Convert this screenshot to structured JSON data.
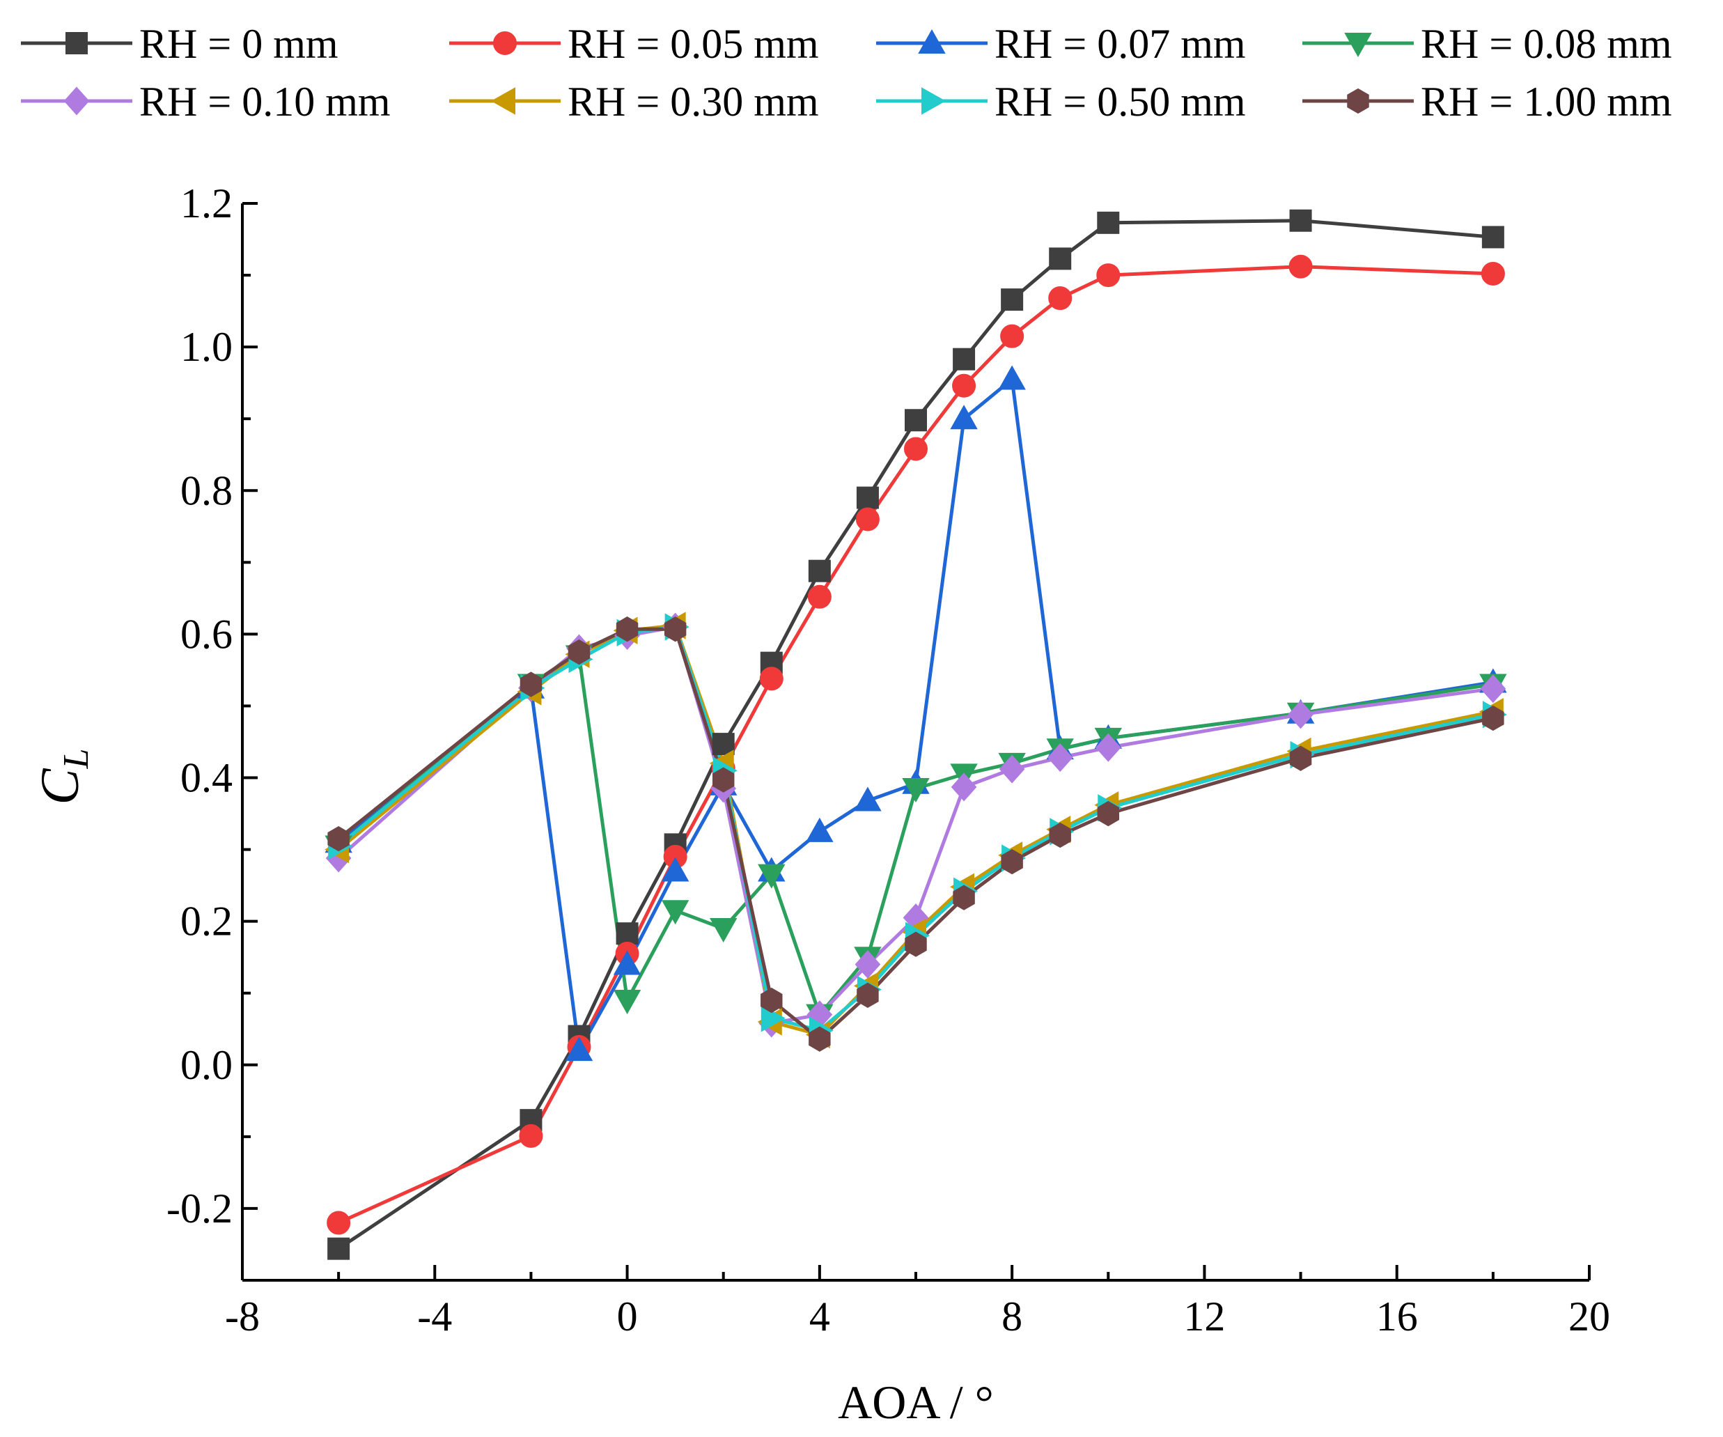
{
  "chart_data": {
    "type": "line",
    "xlabel": "AOA / °",
    "ylabel_main": "C",
    "ylabel_sub": "L",
    "xlim": [
      -8,
      20
    ],
    "ylim": [
      -0.3,
      1.2
    ],
    "xticks": [
      -8,
      -4,
      0,
      4,
      8,
      12,
      16,
      20
    ],
    "xtick_labels": [
      "-8",
      "-4",
      "0",
      "4",
      "8",
      "12",
      "16",
      "20"
    ],
    "yticks": [
      -0.2,
      0.0,
      0.2,
      0.4,
      0.6,
      0.8,
      1.0,
      1.2
    ],
    "ytick_labels": [
      "-0.2",
      "0.0",
      "0.2",
      "0.4",
      "0.6",
      "0.8",
      "1.0",
      "1.2"
    ],
    "grid": false,
    "legend_position": "top",
    "x": [
      -6,
      -2,
      -1,
      0,
      1,
      2,
      3,
      4,
      5,
      6,
      7,
      8,
      9,
      10,
      14,
      18
    ],
    "series": [
      {
        "name": "RH = 0 mm",
        "color": "#3f3f3f",
        "marker": "square",
        "values": [
          -0.256,
          -0.077,
          0.04,
          0.183,
          0.307,
          0.447,
          0.56,
          0.688,
          0.79,
          0.898,
          0.983,
          1.066,
          1.123,
          1.173,
          1.176,
          1.153
        ]
      },
      {
        "name": "RH = 0.05 mm",
        "color": "#f03a3a",
        "marker": "circle",
        "values": [
          -0.22,
          -0.099,
          0.025,
          0.155,
          0.29,
          0.413,
          0.538,
          0.652,
          0.76,
          0.858,
          0.946,
          1.015,
          1.068,
          1.1,
          1.112,
          1.102
        ]
      },
      {
        "name": "RH = 0.07 mm",
        "color": "#1f66d6",
        "marker": "triangle-up",
        "values": [
          0.31,
          0.525,
          0.02,
          0.14,
          0.27,
          0.39,
          0.27,
          0.325,
          0.368,
          0.392,
          0.9,
          0.955,
          0.44,
          0.455,
          0.49,
          0.533
        ]
      },
      {
        "name": "RH = 0.08 mm",
        "color": "#2aa05c",
        "marker": "triangle-down",
        "values": [
          0.305,
          0.53,
          0.57,
          0.09,
          0.215,
          0.19,
          0.265,
          0.07,
          0.15,
          0.385,
          0.405,
          0.42,
          0.44,
          0.455,
          0.49,
          0.53
        ]
      },
      {
        "name": "RH = 0.10 mm",
        "color": "#b07be0",
        "marker": "diamond",
        "values": [
          0.288,
          0.525,
          0.58,
          0.598,
          0.61,
          0.385,
          0.058,
          0.07,
          0.14,
          0.205,
          0.387,
          0.412,
          0.428,
          0.442,
          0.488,
          0.524
        ]
      },
      {
        "name": "RH = 0.30 mm",
        "color": "#c99a00",
        "marker": "triangle-left",
        "values": [
          0.3,
          0.52,
          0.572,
          0.605,
          0.612,
          0.42,
          0.06,
          0.042,
          0.11,
          0.185,
          0.248,
          0.292,
          0.328,
          0.362,
          0.437,
          0.492
        ]
      },
      {
        "name": "RH = 0.50 mm",
        "color": "#22cccc",
        "marker": "triangle-right",
        "values": [
          0.305,
          0.525,
          0.565,
          0.602,
          0.61,
          0.41,
          0.065,
          0.048,
          0.105,
          0.18,
          0.242,
          0.288,
          0.325,
          0.358,
          0.432,
          0.488
        ]
      },
      {
        "name": "RH = 1.00 mm",
        "color": "#6e4444",
        "marker": "hexagon",
        "values": [
          0.315,
          0.53,
          0.575,
          0.607,
          0.607,
          0.397,
          0.09,
          0.036,
          0.097,
          0.168,
          0.233,
          0.283,
          0.32,
          0.35,
          0.427,
          0.483
        ]
      }
    ]
  }
}
